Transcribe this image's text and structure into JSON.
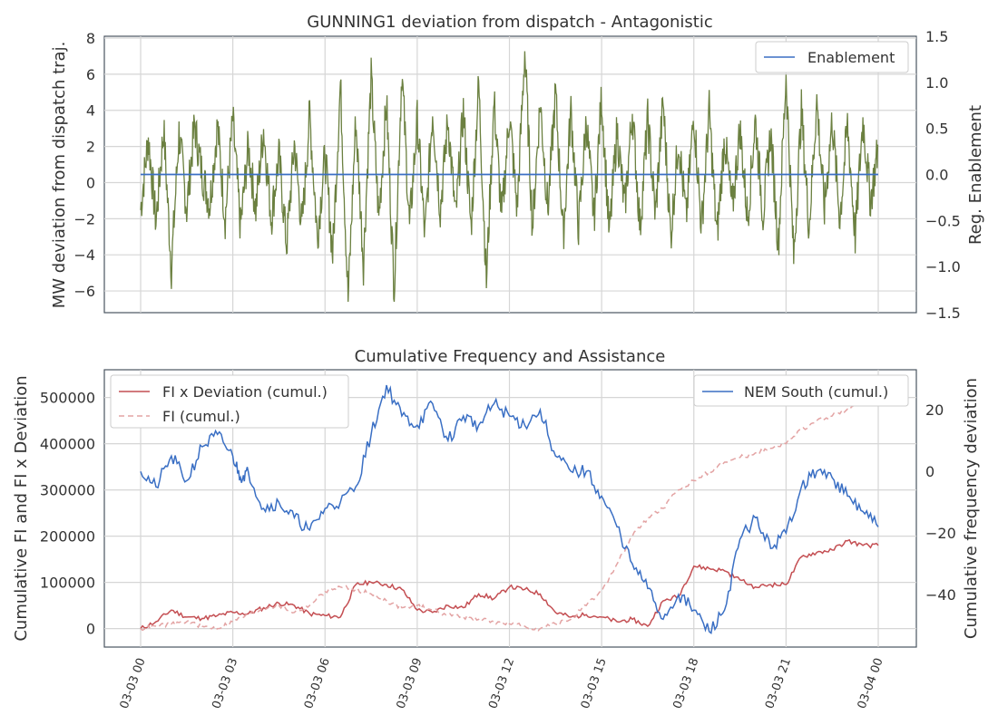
{
  "chart_data": [
    {
      "type": "line",
      "title": "GUNNING1 deviation from dispatch - Antagonistic",
      "ylabel": "MW deviation from dispatch traj.",
      "ylabel_right": "Reg. Enablement",
      "ylim": [
        -7.2,
        8.1
      ],
      "ylim_right": [
        -1.5,
        1.5
      ],
      "yticks": [
        "8",
        "6",
        "4",
        "2",
        "0",
        "−2",
        "−4",
        "−6"
      ],
      "yticks_right": [
        "1.5",
        "1.0",
        "0.5",
        "0.0",
        "−0.5",
        "−1.0",
        "−1.5"
      ],
      "grid": true,
      "legend_position": "top-right",
      "series": [
        {
          "name": "",
          "axis": "left",
          "color": "#6b8040",
          "x_hours": [
            0,
            0.25,
            0.5,
            0.75,
            1,
            1.25,
            1.5,
            1.75,
            2,
            2.25,
            2.5,
            2.75,
            3,
            3.25,
            3.5,
            3.75,
            4,
            4.25,
            4.5,
            4.75,
            5,
            5.25,
            5.5,
            5.75,
            6,
            6.25,
            6.5,
            6.75,
            7,
            7.25,
            7.5,
            7.75,
            8,
            8.25,
            8.5,
            8.75,
            9,
            9.25,
            9.5,
            9.75,
            10,
            10.25,
            10.5,
            10.75,
            11,
            11.25,
            11.5,
            11.75,
            12,
            12.25,
            12.5,
            12.75,
            13,
            13.25,
            13.5,
            13.75,
            14,
            14.25,
            14.5,
            14.75,
            15,
            15.25,
            15.5,
            15.75,
            16,
            16.25,
            16.5,
            16.75,
            17,
            17.25,
            17.5,
            17.75,
            18,
            18.25,
            18.5,
            18.75,
            19,
            19.25,
            19.5,
            19.75,
            20,
            20.25,
            20.5,
            20.75,
            21,
            21.25,
            21.5,
            21.75,
            22,
            22.25,
            22.5,
            22.75,
            23,
            23.25,
            23.5,
            23.75,
            24
          ],
          "values": [
            -1.5,
            2.5,
            -2.2,
            3.0,
            -4.8,
            2.8,
            -1.5,
            3.2,
            0.5,
            -1.2,
            3.2,
            -2.0,
            3.5,
            -2.5,
            2.0,
            -1.5,
            3.0,
            -2.0,
            1.5,
            -3.5,
            2.2,
            -2.5,
            3.8,
            -3.0,
            1.5,
            -4.0,
            5.5,
            -6.5,
            3.5,
            -4.5,
            5.8,
            -2.0,
            4.5,
            -6.0,
            6.2,
            -2.5,
            3.5,
            -3.0,
            4.0,
            -1.5,
            3.5,
            -2.0,
            4.0,
            -2.5,
            5.5,
            -5.5,
            4.5,
            -2.0,
            3.8,
            -1.5,
            7.3,
            -2.5,
            4.5,
            -1.5,
            5.0,
            -3.0,
            4.0,
            -2.5,
            3.5,
            -2.0,
            4.8,
            -3.0,
            3.0,
            -1.5,
            4.0,
            -2.5,
            3.5,
            -1.8,
            4.5,
            -3.0,
            2.5,
            -2.0,
            3.8,
            -2.5,
            4.0,
            -3.0,
            2.5,
            -1.5,
            3.0,
            -2.0,
            3.5,
            -1.8,
            2.8,
            -3.5,
            6.0,
            -4.2,
            4.0,
            -2.5,
            4.5,
            -1.5,
            3.5,
            -2.0,
            3.2,
            -3.0,
            3.5,
            -1.0,
            2.0
          ]
        },
        {
          "name": "Enablement",
          "axis": "right",
          "color": "#3a6fc4",
          "x_hours": [
            0,
            24
          ],
          "values": [
            0.0,
            0.0
          ]
        }
      ]
    },
    {
      "type": "line",
      "title": "Cumulative Frequency and Assistance",
      "ylabel": "Cumulative FI and FI x Deviation",
      "ylabel_right": "Cumulative frequency deviation",
      "ylim": [
        -40000,
        560000
      ],
      "ylim_right": [
        -57,
        33
      ],
      "yticks": [
        "500000",
        "400000",
        "300000",
        "200000",
        "100000",
        "0"
      ],
      "yticks_right": [
        "20",
        "0",
        "−20",
        "−40"
      ],
      "grid": true,
      "legend_left_position": "top-left",
      "legend_right_position": "top-right",
      "x_ticks": [
        "03-03 00",
        "03-03 03",
        "03-03 06",
        "03-03 09",
        "03-03 12",
        "03-03 15",
        "03-03 18",
        "03-03 21",
        "03-04 00"
      ],
      "series": [
        {
          "name": "FI x Deviation (cumul.)",
          "axis": "left",
          "color": "#c44e52",
          "dash": "solid",
          "x_hours": [
            0,
            0.5,
            1,
            1.5,
            2,
            2.5,
            3,
            3.5,
            4,
            4.5,
            5,
            5.5,
            6,
            6.5,
            7,
            7.5,
            8,
            8.5,
            9,
            9.5,
            10,
            10.5,
            11,
            11.5,
            12,
            12.5,
            13,
            13.5,
            14,
            14.5,
            15,
            15.5,
            16,
            16.5,
            17,
            17.5,
            18,
            18.5,
            19,
            19.5,
            20,
            20.5,
            21,
            21.5,
            22,
            22.5,
            23,
            23.5,
            24
          ],
          "values": [
            0,
            15000,
            40000,
            25000,
            22000,
            28000,
            35000,
            32000,
            45000,
            55000,
            50000,
            32000,
            28000,
            25000,
            95000,
            100000,
            95000,
            85000,
            40000,
            35000,
            50000,
            45000,
            75000,
            65000,
            90000,
            85000,
            75000,
            35000,
            25000,
            30000,
            25000,
            15000,
            20000,
            5000,
            60000,
            70000,
            135000,
            130000,
            125000,
            105000,
            90000,
            95000,
            95000,
            155000,
            165000,
            170000,
            190000,
            180000,
            180000
          ]
        },
        {
          "name": "FI (cumul.)",
          "axis": "left",
          "color": "#e3a3a3",
          "dash": "dashed",
          "x_hours": [
            0,
            0.5,
            1,
            1.5,
            2,
            2.5,
            3,
            3.5,
            4,
            4.5,
            5,
            5.5,
            6,
            6.5,
            7,
            7.5,
            8,
            8.5,
            9,
            9.5,
            10,
            10.5,
            11,
            11.5,
            12,
            12.5,
            13,
            13.5,
            14,
            14.5,
            15,
            15.5,
            16,
            16.5,
            17,
            17.5,
            18,
            18.5,
            19,
            19.5,
            20,
            20.5,
            21,
            21.5,
            22,
            22.5,
            23,
            23.5,
            24
          ],
          "values": [
            0,
            5000,
            10000,
            15000,
            5000,
            0,
            15000,
            30000,
            45000,
            50000,
            35000,
            50000,
            80000,
            90000,
            85000,
            75000,
            60000,
            45000,
            50000,
            40000,
            30000,
            25000,
            20000,
            15000,
            10000,
            5000,
            0,
            10000,
            20000,
            50000,
            80000,
            140000,
            200000,
            240000,
            260000,
            300000,
            320000,
            340000,
            360000,
            370000,
            380000,
            390000,
            400000,
            430000,
            450000,
            460000,
            475000,
            490000,
            505000
          ]
        },
        {
          "name": "NEM South (cumul.)",
          "axis": "right",
          "color": "#3a6fc4",
          "dash": "solid",
          "x_hours": [
            0,
            0.5,
            1,
            1.5,
            2,
            2.5,
            3,
            3.25,
            3.5,
            4,
            4.5,
            5,
            5.5,
            6,
            6.5,
            7,
            7.5,
            8,
            8.5,
            9,
            9.5,
            10,
            10.5,
            11,
            11.5,
            12,
            12.5,
            13,
            13.5,
            14,
            14.5,
            15,
            15.5,
            16,
            16.5,
            17,
            17.5,
            18,
            18.5,
            19,
            19.5,
            20,
            20.5,
            21,
            21.5,
            22,
            22.5,
            23,
            23.5,
            24
          ],
          "values": [
            0,
            -5,
            5,
            -3,
            8,
            12,
            5,
            -2,
            0,
            -12,
            -10,
            -15,
            -19,
            -12,
            -10,
            -5,
            12,
            28,
            18,
            15,
            22,
            10,
            18,
            15,
            22,
            18,
            15,
            20,
            5,
            0,
            0,
            -8,
            -18,
            -30,
            -38,
            -48,
            -40,
            -45,
            -52,
            -45,
            -22,
            -15,
            -25,
            -20,
            -5,
            0,
            -2,
            -8,
            -13,
            -18
          ]
        }
      ]
    }
  ]
}
